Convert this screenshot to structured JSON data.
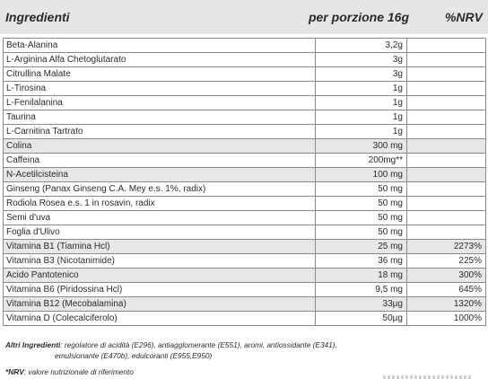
{
  "header": {
    "ingredients": "Ingredienti",
    "per_serving": "per porzione 16g",
    "nrv": "%NRV"
  },
  "rows": [
    {
      "name": "Beta-Alanina",
      "amount": "3,2g",
      "nrv": "",
      "shade": false
    },
    {
      "name": "L-Arginina Alfa Chetoglutarato",
      "amount": "3g",
      "nrv": "",
      "shade": false
    },
    {
      "name": "Citrullina Malate",
      "amount": "3g",
      "nrv": "",
      "shade": false
    },
    {
      "name": "L-Tirosina",
      "amount": "1g",
      "nrv": "",
      "shade": false
    },
    {
      "name": "L-Fenilalanina",
      "amount": "1g",
      "nrv": "",
      "shade": false
    },
    {
      "name": "Taurina",
      "amount": "1g",
      "nrv": "",
      "shade": false
    },
    {
      "name": "L-Carnitina Tartrato",
      "amount": "1g",
      "nrv": "",
      "shade": false
    },
    {
      "name": "Colina",
      "amount": "300 mg",
      "nrv": "",
      "shade": true
    },
    {
      "name": "Caffeina",
      "amount": "200mg**",
      "nrv": "",
      "shade": false
    },
    {
      "name": "N-Acetilcisteina",
      "amount": "100 mg",
      "nrv": "",
      "shade": true
    },
    {
      "name": "Ginseng (Panax Ginseng C.A. Mey e.s. 1%, radix)",
      "amount": "50 mg",
      "nrv": "",
      "shade": false
    },
    {
      "name": "Rodiola Rosea e.s. 1 in rosavin, radix",
      "amount": "50 mg",
      "nrv": "",
      "shade": false
    },
    {
      "name": "Semi d'uva",
      "amount": "50 mg",
      "nrv": "",
      "shade": false
    },
    {
      "name": "Foglia d'Ulivo",
      "amount": "50 mg",
      "nrv": "",
      "shade": false
    },
    {
      "name": "Vitamina B1 (Tiamina Hcl)",
      "amount": "25 mg",
      "nrv": "2273%",
      "shade": true
    },
    {
      "name": "Vitamina B3 (Nicotanimide)",
      "amount": "36 mg",
      "nrv": "225%",
      "shade": false
    },
    {
      "name": "Acido Pantotenico",
      "amount": "18 mg",
      "nrv": "300%",
      "shade": true
    },
    {
      "name": "Vitamina B6 (Piridossina Hcl)",
      "amount": "9,5 mg",
      "nrv": "645%",
      "shade": false
    },
    {
      "name": "Vitamina B12 (Mecobalamina)",
      "amount": "33µg",
      "nrv": "1320%",
      "shade": true
    },
    {
      "name": "Vitamina D (Colecalciferolo)",
      "amount": "50µg",
      "nrv": "1000%",
      "shade": false
    }
  ],
  "other_ingredients": {
    "label": "Altri Ingredienti",
    "text_line1": ": regolatore di acidità (E296), antiagglomerante (E551), aromi, antiossidante (E341),",
    "text_line2": "emulsionante (E470b), edulcoranti (E955,E950)"
  },
  "nrv_note": {
    "label": "*NRV",
    "text": ": valore nutrizionale di riferimento"
  }
}
